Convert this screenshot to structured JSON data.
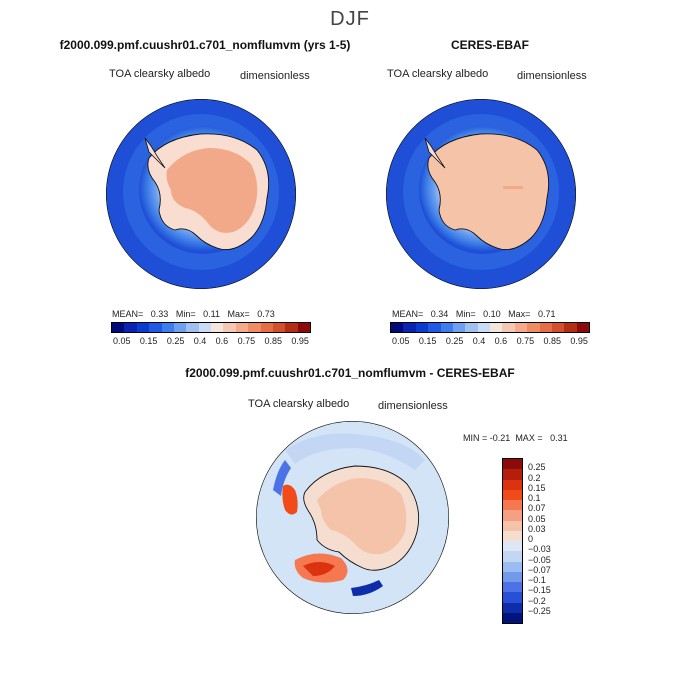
{
  "season": "DJF",
  "panels": {
    "model": {
      "title": "f2000.099.pmf.cuushr01.c701_nomflumvm (yrs 1-5)",
      "variable": "TOA clearsky albedo",
      "units": "dimensionless",
      "mean_label": "MEAN=",
      "mean": "0.33",
      "min_label": "Min=",
      "min": "0.11",
      "max_label": "Max=",
      "max": "0.73"
    },
    "obs": {
      "title": "CERES-EBAF",
      "variable": "TOA clearsky albedo",
      "units": "dimensionless",
      "mean_label": "MEAN=",
      "mean": "0.34",
      "min_label": "Min=",
      "min": "0.10",
      "max_label": "Max=",
      "max": "0.71"
    },
    "diff": {
      "title": "f2000.099.pmf.cuushr01.c701_nomflumvm - CERES-EBAF",
      "variable": "TOA clearsky albedo",
      "units": "dimensionless",
      "min_label": "MIN =",
      "min": "-0.21",
      "max_label": "MAX =",
      "max": "0.31"
    }
  },
  "colorbar_main": {
    "ticks": [
      "0.05",
      "0.15",
      "0.25",
      "0.4",
      "0.6",
      "0.75",
      "0.85",
      "0.95"
    ],
    "colors": [
      "#000a7a",
      "#0a23b4",
      "#0a3cd2",
      "#1e5ae6",
      "#3c7ef0",
      "#6ea0f0",
      "#a0c0f0",
      "#c8dcf5",
      "#f5e6dc",
      "#f5c8b4",
      "#f5aa8c",
      "#f08c64",
      "#e66e46",
      "#d2502d",
      "#b42d14",
      "#8c0a0a"
    ]
  },
  "colorbar_diff": {
    "labels": [
      "0.25",
      "0.2",
      "0.15",
      "0.1",
      "0.07",
      "0.05",
      "0.03",
      "0",
      "−0.03",
      "−0.05",
      "−0.07",
      "−0.1",
      "−0.15",
      "−0.2",
      "−0.25"
    ],
    "colors": [
      "#8c0a0a",
      "#b41e0a",
      "#dc320f",
      "#f04b19",
      "#f57850",
      "#f5a082",
      "#f5c3aa",
      "#f5ddd0",
      "#dce8f5",
      "#c3d7f5",
      "#9bbcf0",
      "#7399eb",
      "#4b73e6",
      "#2850d7",
      "#0f2daa",
      "#00147d"
    ]
  },
  "map_colors": {
    "ocean_dark": "#1e4fd6",
    "ocean_mid": "#3e7fe8",
    "ice_edge": "#a8c8f2",
    "ice_white": "#eef2f6",
    "land_light": "#f8ddd0",
    "land_mid": "#f5c3a8",
    "land_core": "#f2a98a",
    "diff_bg": "#d2e4f6",
    "diff_pos": "#f5c3aa",
    "diff_strong": "#f04b19"
  }
}
